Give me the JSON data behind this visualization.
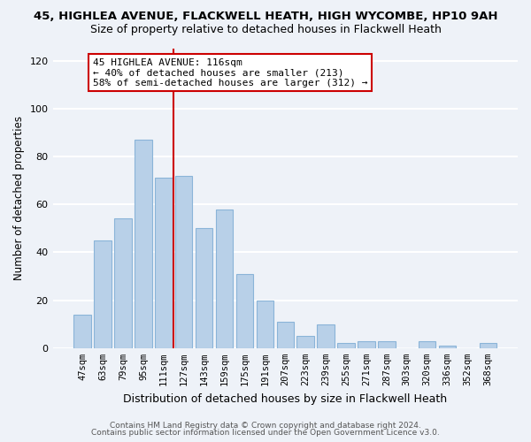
{
  "title": "45, HIGHLEA AVENUE, FLACKWELL HEATH, HIGH WYCOMBE, HP10 9AH",
  "subtitle": "Size of property relative to detached houses in Flackwell Heath",
  "xlabel": "Distribution of detached houses by size in Flackwell Heath",
  "ylabel": "Number of detached properties",
  "bar_labels": [
    "47sqm",
    "63sqm",
    "79sqm",
    "95sqm",
    "111sqm",
    "127sqm",
    "143sqm",
    "159sqm",
    "175sqm",
    "191sqm",
    "207sqm",
    "223sqm",
    "239sqm",
    "255sqm",
    "271sqm",
    "287sqm",
    "303sqm",
    "320sqm",
    "336sqm",
    "352sqm",
    "368sqm"
  ],
  "bar_values": [
    14,
    45,
    54,
    87,
    71,
    72,
    50,
    58,
    31,
    20,
    11,
    5,
    10,
    2,
    3,
    3,
    0,
    3,
    1,
    0,
    2
  ],
  "bar_color": "#b8d0e8",
  "bar_edge_color": "#8ab4d8",
  "vline_x_pos": 4.5,
  "vline_color": "#cc0000",
  "annotation_text_line1": "45 HIGHLEA AVENUE: 116sqm",
  "annotation_text_line2": "← 40% of detached houses are smaller (213)",
  "annotation_text_line3": "58% of semi-detached houses are larger (312) →",
  "ylim": [
    0,
    125
  ],
  "yticks": [
    0,
    20,
    40,
    60,
    80,
    100,
    120
  ],
  "background_color": "#eef2f8",
  "grid_color": "#ffffff",
  "footer_line1": "Contains HM Land Registry data © Crown copyright and database right 2024.",
  "footer_line2": "Contains public sector information licensed under the Open Government Licence v3.0."
}
